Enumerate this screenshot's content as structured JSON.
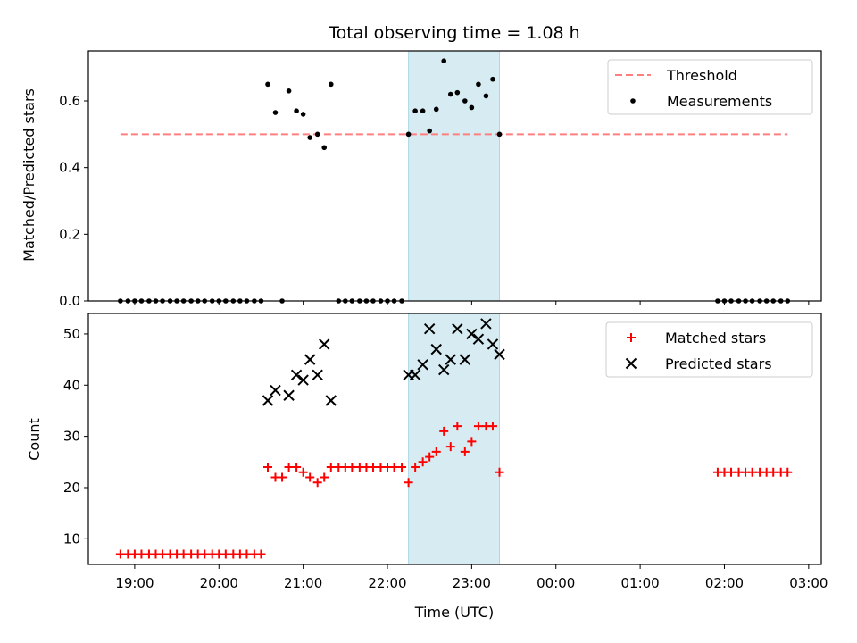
{
  "chart_data": {
    "title": "Total observing time = 1.08 h",
    "xlabel": "Time (UTC)",
    "x_ticks": [
      "19:00",
      "20:00",
      "21:00",
      "22:00",
      "23:00",
      "00:00",
      "01:00",
      "02:00",
      "03:00"
    ],
    "x_range_hours": [
      18.45,
      27.15
    ],
    "highlight_span_hours": [
      22.25,
      23.33
    ],
    "colors": {
      "threshold": "#ff7f7f",
      "matched": "#ff0000",
      "predicted": "#000000",
      "span": "#add8e6"
    },
    "panels": [
      {
        "type": "scatter",
        "ylabel": "Matched/Predicted stars",
        "ylim": [
          0,
          0.75
        ],
        "y_ticks": [
          "0.0",
          "0.2",
          "0.4",
          "0.6"
        ],
        "y_tick_values": [
          0,
          0.2,
          0.4,
          0.6
        ],
        "legend": [
          "Threshold",
          "Measurements"
        ],
        "legend_position": "upper right",
        "threshold": {
          "name": "Threshold",
          "value": 0.5,
          "x_range_hours": [
            18.83,
            26.75
          ]
        },
        "series": [
          {
            "name": "Measurements",
            "x": [
              18.83,
              18.92,
              19.0,
              19.08,
              19.17,
              19.25,
              19.33,
              19.42,
              19.5,
              19.58,
              19.67,
              19.75,
              19.83,
              19.92,
              20.0,
              20.08,
              20.17,
              20.25,
              20.33,
              20.42,
              20.5,
              20.58,
              20.67,
              20.75,
              20.83,
              20.92,
              21.0,
              21.08,
              21.17,
              21.25,
              21.33,
              21.42,
              21.5,
              21.58,
              21.67,
              21.75,
              21.83,
              21.92,
              22.0,
              22.08,
              22.17,
              22.25,
              22.33,
              22.42,
              22.5,
              22.58,
              22.67,
              22.75,
              22.83,
              22.92,
              23.0,
              23.08,
              23.17,
              23.25,
              23.33,
              25.92,
              26.0,
              26.08,
              26.17,
              26.25,
              26.33,
              26.42,
              26.5,
              26.58,
              26.67,
              26.75
            ],
            "y": [
              0,
              0,
              0,
              0,
              0,
              0,
              0,
              0,
              0,
              0,
              0,
              0,
              0,
              0,
              0,
              0,
              0,
              0,
              0,
              0,
              0,
              0.65,
              0.565,
              0,
              0.63,
              0.57,
              0.56,
              0.49,
              0.5,
              0.46,
              0.65,
              0,
              0,
              0,
              0,
              0,
              0,
              0,
              0,
              0,
              0,
              0.5,
              0.57,
              0.57,
              0.51,
              0.575,
              0.72,
              0.62,
              0.625,
              0.6,
              0.58,
              0.65,
              0.615,
              0.665,
              0.5,
              0,
              0,
              0,
              0,
              0,
              0,
              0,
              0,
              0,
              0,
              0
            ]
          }
        ]
      },
      {
        "type": "scatter",
        "ylabel": "Count",
        "ylim": [
          5,
          54
        ],
        "y_ticks": [
          "10",
          "20",
          "30",
          "40",
          "50"
        ],
        "y_tick_values": [
          10,
          20,
          30,
          40,
          50
        ],
        "legend": [
          "Matched stars",
          "Predicted stars"
        ],
        "legend_position": "upper right",
        "series": [
          {
            "name": "Matched stars",
            "marker": "+",
            "x": [
              18.83,
              18.92,
              19.0,
              19.08,
              19.17,
              19.25,
              19.33,
              19.42,
              19.5,
              19.58,
              19.67,
              19.75,
              19.83,
              19.92,
              20.0,
              20.08,
              20.17,
              20.25,
              20.33,
              20.42,
              20.5,
              20.58,
              20.67,
              20.75,
              20.83,
              20.92,
              21.0,
              21.08,
              21.17,
              21.25,
              21.33,
              21.42,
              21.5,
              21.58,
              21.67,
              21.75,
              21.83,
              21.92,
              22.0,
              22.08,
              22.17,
              22.25,
              22.33,
              22.42,
              22.5,
              22.58,
              22.67,
              22.75,
              22.83,
              22.92,
              23.0,
              23.08,
              23.17,
              23.25,
              23.33,
              25.92,
              26.0,
              26.08,
              26.17,
              26.25,
              26.33,
              26.42,
              26.5,
              26.58,
              26.67,
              26.75
            ],
            "y": [
              7,
              7,
              7,
              7,
              7,
              7,
              7,
              7,
              7,
              7,
              7,
              7,
              7,
              7,
              7,
              7,
              7,
              7,
              7,
              7,
              7,
              24,
              22,
              22,
              24,
              24,
              23,
              22,
              21,
              22,
              24,
              24,
              24,
              24,
              24,
              24,
              24,
              24,
              24,
              24,
              24,
              21,
              24,
              25,
              26,
              27,
              31,
              28,
              32,
              27,
              29,
              32,
              32,
              32,
              23,
              23,
              23,
              23,
              23,
              23,
              23,
              23,
              23,
              23,
              23,
              23
            ]
          },
          {
            "name": "Predicted stars",
            "marker": "x",
            "x": [
              20.58,
              20.67,
              20.83,
              20.92,
              21.0,
              21.08,
              21.17,
              21.25,
              21.33,
              22.25,
              22.33,
              22.42,
              22.5,
              22.58,
              22.67,
              22.75,
              22.83,
              22.92,
              23.0,
              23.08,
              23.17,
              23.25,
              23.33
            ],
            "y": [
              37,
              39,
              38,
              42,
              41,
              45,
              42,
              48,
              37,
              42,
              42,
              44,
              51,
              47,
              43,
              45,
              51,
              45,
              50,
              49,
              52,
              48,
              46
            ]
          }
        ]
      }
    ]
  }
}
